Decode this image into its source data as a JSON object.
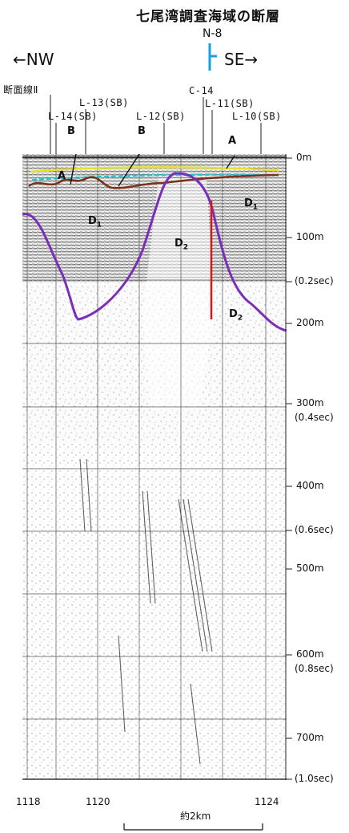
{
  "title": "七尾湾調査海域の断層",
  "station": "N-8",
  "direction_left": "←NW",
  "direction_right": "SE→",
  "line_labels": {
    "danmen": "断面線Ⅱ",
    "l14": "L-14(SB)",
    "l13": "L-13(SB)",
    "l12": "L-12(SB)",
    "c14": "C-14",
    "l11": "L-11(SB)",
    "l10": "L-10(SB)"
  },
  "units": {
    "A_left": "A",
    "A_right": "A",
    "B_left": "B",
    "B_right": "B",
    "D1_left": "D",
    "D1_right": "D",
    "D2_center": "D",
    "D2_right": "D",
    "sub1": "1",
    "sub2": "2"
  },
  "depth_labels": {
    "d0": "0m",
    "d100": "100m",
    "s02": "(0.2sec)",
    "d200": "200m",
    "d300": "300m",
    "s04": "(0.4sec)",
    "d400": "400m",
    "s06": "(0.6sec)",
    "d500": "500m",
    "d600": "600m",
    "s08": "(0.8sec)",
    "d700": "700m",
    "s10": "(1.0sec)"
  },
  "bottom_ticks": {
    "t1118": "1118",
    "t1120": "1120",
    "t1124": "1124"
  },
  "scale_label": "約2km",
  "colors": {
    "seabed_yellow": "#e8e02a",
    "seabed_cyan": "#27c4d8",
    "horizon_brown": "#7a3319",
    "horizon_purple": "#7a2fb8",
    "fault_red": "#d11a1a",
    "station_marker": "#1aa0e0"
  }
}
